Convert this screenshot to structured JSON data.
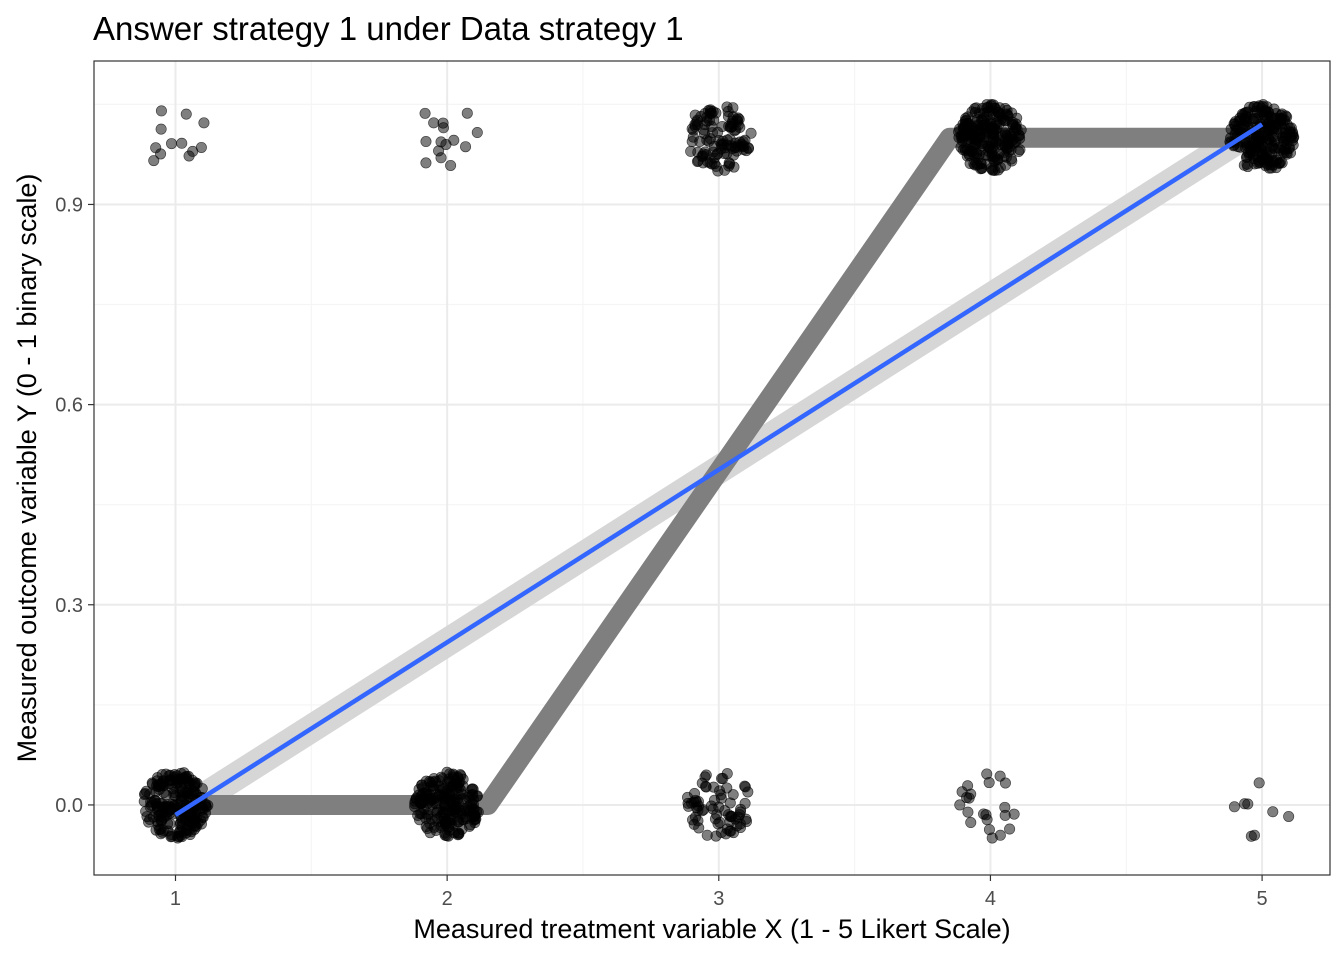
{
  "chart_data": {
    "type": "scatter",
    "title": "Answer strategy 1 under Data strategy 1",
    "xlabel": "Measured treatment variable X (1 - 5 Likert Scale)",
    "ylabel": "Measured outcome variable Y (0 - 1 binary scale)",
    "xlim": [
      0.7,
      5.25
    ],
    "ylim": [
      -0.105,
      1.115
    ],
    "x_ticks": [
      1,
      2,
      3,
      4,
      5
    ],
    "x_tick_labels": [
      "1",
      "2",
      "3",
      "4",
      "5"
    ],
    "y_ticks": [
      0.0,
      0.3,
      0.6,
      0.9
    ],
    "y_tick_labels": [
      "0.0",
      "0.3",
      "0.6",
      "0.9"
    ],
    "grid": true,
    "points_jittered": true,
    "jitter_width": 0.12,
    "jitter_height": 0.05,
    "groups": [
      {
        "x": 1,
        "y": 0,
        "n": 220
      },
      {
        "x": 1,
        "y": 1,
        "n": 12
      },
      {
        "x": 2,
        "y": 0,
        "n": 200
      },
      {
        "x": 2,
        "y": 1,
        "n": 15
      },
      {
        "x": 3,
        "y": 0,
        "n": 70
      },
      {
        "x": 3,
        "y": 1,
        "n": 110
      },
      {
        "x": 4,
        "y": 0,
        "n": 22
      },
      {
        "x": 4,
        "y": 1,
        "n": 210
      },
      {
        "x": 5,
        "y": 0,
        "n": 8
      },
      {
        "x": 5,
        "y": 1,
        "n": 220
      }
    ],
    "true_relationship": {
      "x": [
        1,
        2,
        2.15,
        3.85,
        4,
        5
      ],
      "y": [
        0,
        0,
        0,
        1,
        1,
        1
      ],
      "color": "#7f7f7f"
    },
    "linear_fit": {
      "x": [
        1,
        5
      ],
      "y": [
        -0.015,
        1.02
      ],
      "ci_lower": [
        -0.04,
        0.995
      ],
      "ci_upper": [
        0.01,
        1.045
      ],
      "color": "#3366ff",
      "ci_color": "#d4d4d4"
    },
    "colors": {
      "points": "#000000",
      "grid_major": "#ebebeb",
      "grid_minor": "#f5f5f5",
      "border": "#333333"
    }
  }
}
